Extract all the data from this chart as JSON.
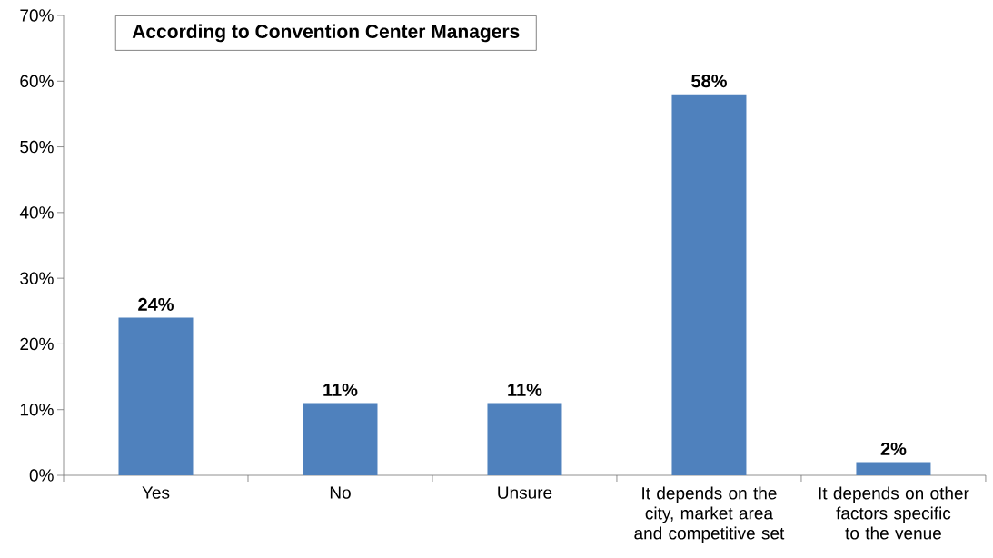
{
  "chart_data": {
    "type": "bar",
    "title": "According to Convention Center Managers",
    "categories": [
      "Yes",
      "No",
      "Unsure",
      "It depends on the city, market area and competitive set",
      "It depends on other factors specific to the venue"
    ],
    "values": [
      24,
      11,
      11,
      58,
      2
    ],
    "value_labels": [
      "24%",
      "11%",
      "11%",
      "58%",
      "2%"
    ],
    "color": "#4f81bd",
    "ylim": [
      0,
      70
    ],
    "yticks": [
      {
        "value": 0,
        "label": "0%"
      },
      {
        "value": 10,
        "label": "10%"
      },
      {
        "value": 20,
        "label": "20%"
      },
      {
        "value": 30,
        "label": "30%"
      },
      {
        "value": 40,
        "label": "40%"
      },
      {
        "value": 50,
        "label": "50%"
      },
      {
        "value": 60,
        "label": "60%"
      },
      {
        "value": 70,
        "label": "70%"
      }
    ],
    "grid": false
  }
}
